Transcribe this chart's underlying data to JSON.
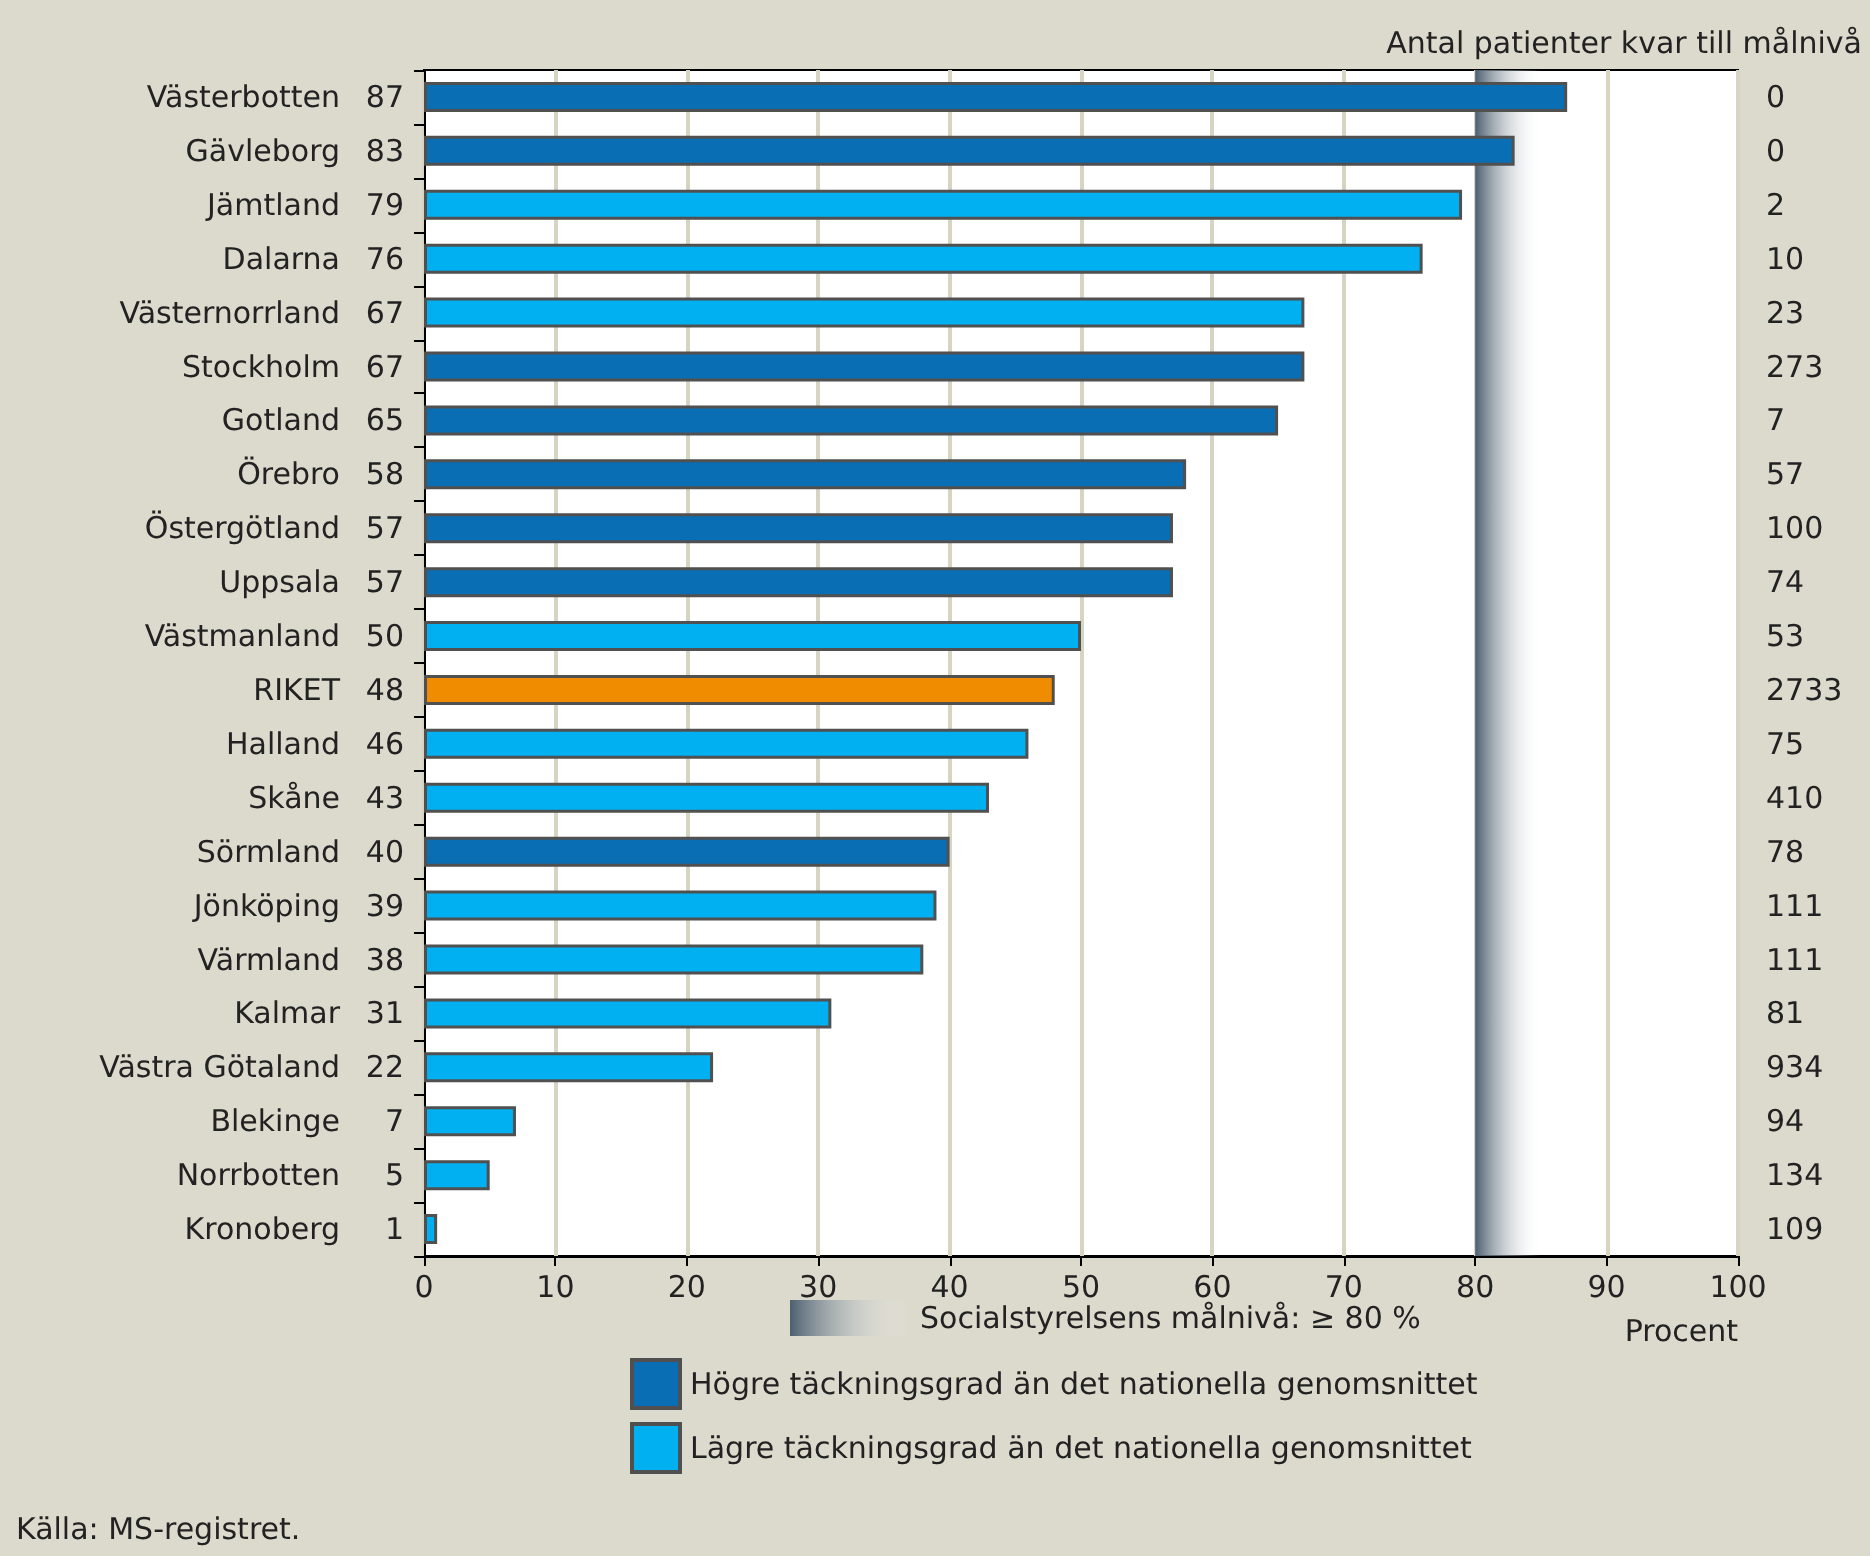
{
  "chart_data": {
    "type": "bar",
    "orientation": "horizontal",
    "categories": [
      "Västerbotten",
      "Gävleborg",
      "Jämtland",
      "Dalarna",
      "Västernorrland",
      "Stockholm",
      "Gotland",
      "Örebro",
      "Östergötland",
      "Uppsala",
      "Västmanland",
      "RIKET",
      "Halland",
      "Skåne",
      "Sörmland",
      "Jönköping",
      "Värmland",
      "Kalmar",
      "Västra Götaland",
      "Blekinge",
      "Norrbotten",
      "Kronoberg"
    ],
    "series": [
      {
        "name": "Högre täckningsgrad än det nationella genomsnittet",
        "color": "#0a6eb4",
        "values": [
          87,
          83,
          null,
          null,
          null,
          67,
          65,
          58,
          57,
          57,
          null,
          null,
          null,
          null,
          40,
          null,
          null,
          null,
          null,
          null,
          null,
          null
        ]
      },
      {
        "name": "Lägre täckningsgrad än det nationella genomsnittet",
        "color": "#00b0f0",
        "values": [
          null,
          null,
          79,
          76,
          67,
          null,
          null,
          null,
          null,
          null,
          50,
          null,
          46,
          43,
          null,
          39,
          38,
          31,
          22,
          7,
          5,
          1
        ]
      },
      {
        "color": "#f08c00",
        "values": [
          null,
          null,
          null,
          null,
          null,
          null,
          null,
          null,
          null,
          null,
          null,
          48,
          null,
          null,
          null,
          null,
          null,
          null,
          null,
          null,
          null,
          null
        ]
      }
    ],
    "data_labels": true,
    "xlim": [
      0,
      100
    ],
    "xticks": [
      0,
      10,
      20,
      30,
      40,
      50,
      60,
      70,
      80,
      90,
      100
    ],
    "xlabel": "Procent",
    "y2label": "Antal patienter kvar till målnivå",
    "grid": "x",
    "legend": "bottom",
    "bands": [
      {
        "axis": "x",
        "from": 80,
        "to": 85,
        "label": "Socialstyrelsens målnivå: ≥ 80 %",
        "color": "#4d6070"
      }
    ],
    "annotations": [
      "0",
      "0",
      "2",
      "10",
      "23",
      "273",
      "7",
      "57",
      "100",
      "74",
      "53",
      "2733",
      "75",
      "410",
      "78",
      "111",
      "111",
      "81",
      "934",
      "94",
      "134",
      "109",
      "Källa: MS-registret."
    ]
  }
}
